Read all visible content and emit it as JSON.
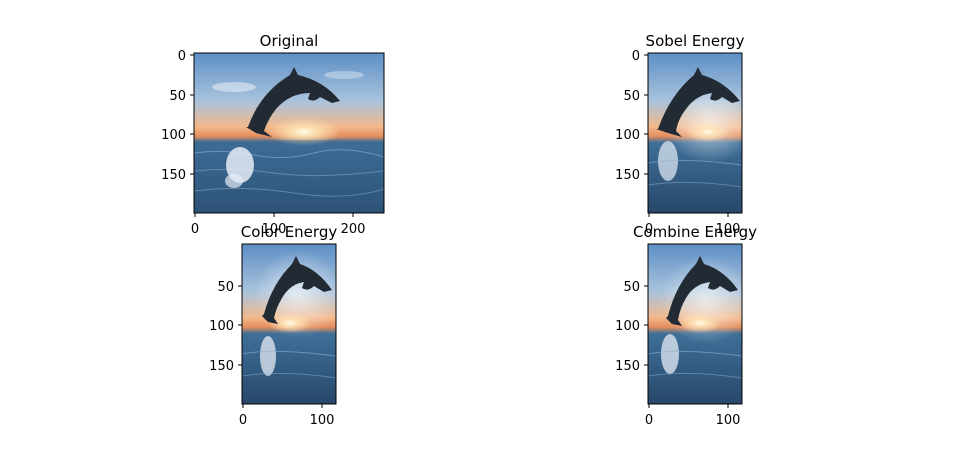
{
  "figure": {
    "panels": [
      {
        "title": "Original",
        "x_ticks": [
          "0",
          "100",
          "200"
        ],
        "y_ticks": [
          "0",
          "50",
          "100",
          "150"
        ]
      },
      {
        "title": "Sobel Energy",
        "x_ticks": [
          "0",
          "100"
        ],
        "y_ticks": [
          "0",
          "50",
          "100",
          "150"
        ]
      },
      {
        "title": "Color Energy",
        "x_ticks": [
          "0",
          "100"
        ],
        "y_ticks": [
          "50",
          "100",
          "150"
        ]
      },
      {
        "title": "Combine Energy",
        "x_ticks": [
          "0",
          "100"
        ],
        "y_ticks": [
          "50",
          "100",
          "150"
        ]
      }
    ],
    "colors": {
      "sky_top": "#5d8fc6",
      "sky_mid": "#a9c3dc",
      "sunset": "#f2b98c",
      "horizon": "#e58d5c",
      "sea_top": "#3f6f99",
      "sea_bottom": "#27486a",
      "dolphin": "#222a33",
      "splash": "#e6ecf6"
    }
  }
}
